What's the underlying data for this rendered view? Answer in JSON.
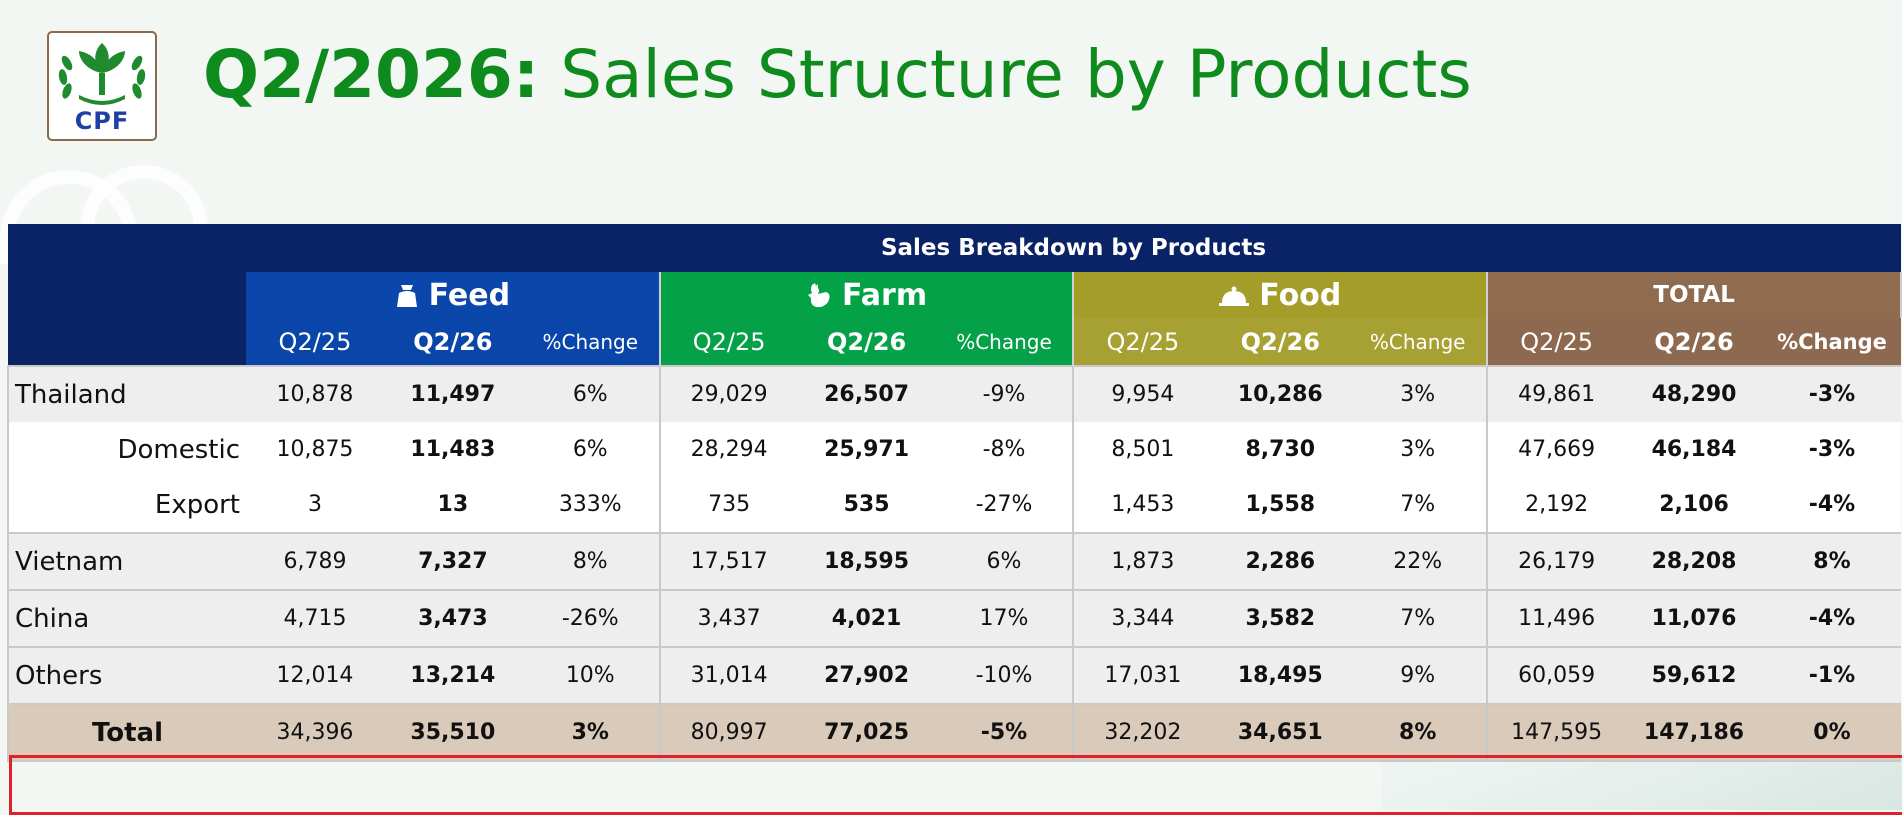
{
  "title": {
    "bold": "Q2/2026:",
    "rest": " Sales Structure by Products"
  },
  "logo": {
    "text": "CPF",
    "icon": "cpf-wheat-logo-icon"
  },
  "table": {
    "main_header": "Sales Breakdown by Products",
    "groups": [
      {
        "label": "Feed",
        "icon": "feed-sack-icon"
      },
      {
        "label": "Farm",
        "icon": "rooster-icon"
      },
      {
        "label": "Food",
        "icon": "food-cloche-icon"
      },
      {
        "label": "TOTAL",
        "icon": ""
      }
    ],
    "subheaders": {
      "prev": "Q2/25",
      "cur": "Q2/26",
      "pct": "%Change"
    },
    "rows": [
      {
        "label": "Thailand",
        "values": [
          "10,878",
          "11,497",
          "6%",
          "29,029",
          "26,507",
          "-9%",
          "9,954",
          "10,286",
          "3%",
          "49,861",
          "48,290",
          "-3%"
        ]
      },
      {
        "label": "Domestic",
        "values": [
          "10,875",
          "11,483",
          "6%",
          "28,294",
          "25,971",
          "-8%",
          "8,501",
          "8,730",
          "3%",
          "47,669",
          "46,184",
          "-3%"
        ]
      },
      {
        "label": "Export",
        "values": [
          "3",
          "13",
          "333%",
          "735",
          "535",
          "-27%",
          "1,453",
          "1,558",
          "7%",
          "2,192",
          "2,106",
          "-4%"
        ]
      },
      {
        "label": "Vietnam",
        "values": [
          "6,789",
          "7,327",
          "8%",
          "17,517",
          "18,595",
          "6%",
          "1,873",
          "2,286",
          "22%",
          "26,179",
          "28,208",
          "8%"
        ]
      },
      {
        "label": "China",
        "values": [
          "4,715",
          "3,473",
          "-26%",
          "3,437",
          "4,021",
          "17%",
          "3,344",
          "3,582",
          "7%",
          "11,496",
          "11,076",
          "-4%"
        ]
      },
      {
        "label": "Others",
        "values": [
          "12,014",
          "13,214",
          "10%",
          "31,014",
          "27,902",
          "-10%",
          "17,031",
          "18,495",
          "9%",
          "60,059",
          "59,612",
          "-1%"
        ]
      },
      {
        "label": "Total",
        "values": [
          "34,396",
          "35,510",
          "3%",
          "80,997",
          "77,025",
          "-5%",
          "32,202",
          "34,651",
          "8%",
          "147,595",
          "147,186",
          "0%"
        ]
      }
    ]
  },
  "colors": {
    "title_green": "#0f8a1c",
    "header_navy": "#0a2367",
    "feed_blue": "#0b46aa",
    "farm_green": "#03a247",
    "food_olive": "#a59d2a",
    "total_brown": "#8f6b50",
    "total_row_bg": "#d9cab9",
    "highlight_red": "#e0202c"
  },
  "highlighted_row": "Vietnam"
}
